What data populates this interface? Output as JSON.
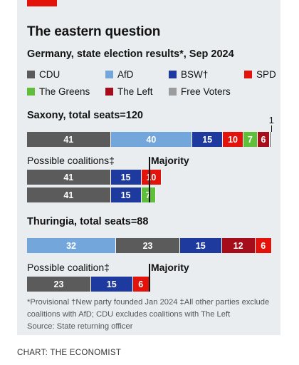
{
  "title": "The eastern question",
  "subtitle": "Germany, state election results*, Sep 2024",
  "colors": {
    "CDU": "#5b5b5b",
    "AfD": "#73a7db",
    "BSW": "#1f3a9e",
    "SPD": "#e3120b",
    "The Greens": "#5fbf3a",
    "The Left": "#a50d1a",
    "Free Voters": "#9c9c9c"
  },
  "legend": [
    {
      "key": "CDU",
      "label": "CDU"
    },
    {
      "key": "AfD",
      "label": "AfD"
    },
    {
      "key": "BSW",
      "label": "BSW†"
    },
    {
      "key": "SPD",
      "label": "SPD"
    },
    {
      "key": "The Greens",
      "label": "The Greens"
    },
    {
      "key": "The Left",
      "label": "The Left"
    },
    {
      "key": "Free Voters",
      "label": "Free Voters"
    }
  ],
  "majority_label": "Majority",
  "chart_data": [
    {
      "type": "bar",
      "title": "Saxony, total seats=120",
      "total": 120,
      "majority": 61,
      "series": [
        {
          "name": "CDU",
          "value": 41
        },
        {
          "name": "AfD",
          "value": 40
        },
        {
          "name": "BSW",
          "value": 15
        },
        {
          "name": "SPD",
          "value": 10
        },
        {
          "name": "The Greens",
          "value": 7
        },
        {
          "name": "The Left",
          "value": 6
        },
        {
          "name": "Free Voters",
          "value": 1
        }
      ],
      "coalitions_label": "Possible coalitions‡",
      "coalitions": [
        [
          {
            "name": "CDU",
            "value": 41
          },
          {
            "name": "BSW",
            "value": 15
          },
          {
            "name": "SPD",
            "value": 10
          }
        ],
        [
          {
            "name": "CDU",
            "value": 41
          },
          {
            "name": "BSW",
            "value": 15
          },
          {
            "name": "The Greens",
            "value": 7
          }
        ]
      ]
    },
    {
      "type": "bar",
      "title": "Thuringia, total seats=88",
      "total": 88,
      "majority": 45,
      "series": [
        {
          "name": "AfD",
          "value": 32
        },
        {
          "name": "CDU",
          "value": 23
        },
        {
          "name": "BSW",
          "value": 15
        },
        {
          "name": "The Left",
          "value": 12
        },
        {
          "name": "SPD",
          "value": 6
        }
      ],
      "coalitions_label": "Possible coalition‡",
      "coalitions": [
        [
          {
            "name": "CDU",
            "value": 23
          },
          {
            "name": "BSW",
            "value": 15
          },
          {
            "name": "SPD",
            "value": 6
          }
        ]
      ]
    }
  ],
  "footnote": "*Provisional   †New party founded Jan 2024   ‡All other parties exclude coalitions with AfD; CDU excludes coalitions with The Left",
  "source": "Source: State returning officer",
  "credit": "CHART: THE ECONOMIST"
}
